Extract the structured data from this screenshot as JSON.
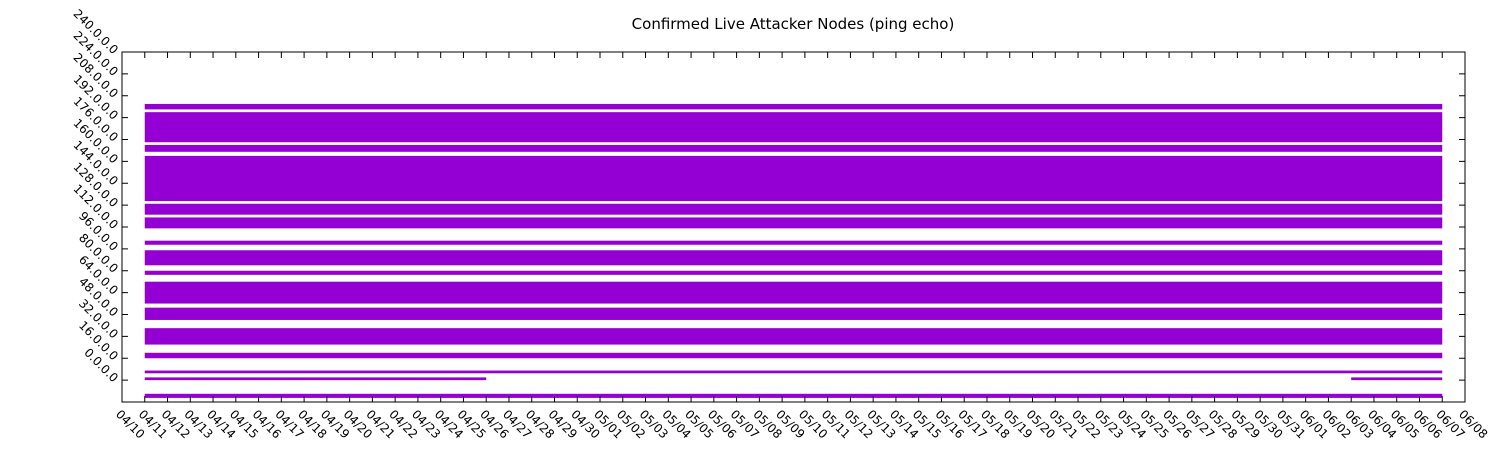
{
  "chart_data": {
    "type": "bands",
    "title": "Confirmed Live Attacker Nodes (ping echo)",
    "color": "#9400d3",
    "xlim": [
      "04/10",
      "06/08"
    ],
    "xticks": [
      "04/10",
      "04/11",
      "04/12",
      "04/13",
      "04/14",
      "04/15",
      "04/16",
      "04/17",
      "04/18",
      "04/19",
      "04/20",
      "04/21",
      "04/22",
      "04/23",
      "04/24",
      "04/25",
      "04/26",
      "04/27",
      "04/28",
      "04/29",
      "04/30",
      "05/01",
      "05/02",
      "05/03",
      "05/04",
      "05/05",
      "05/06",
      "05/07",
      "05/08",
      "05/09",
      "05/10",
      "05/11",
      "05/12",
      "05/13",
      "05/14",
      "05/15",
      "05/16",
      "05/17",
      "05/18",
      "05/19",
      "05/20",
      "05/21",
      "05/22",
      "05/23",
      "05/24",
      "05/25",
      "05/26",
      "05/27",
      "05/28",
      "05/29",
      "05/30",
      "05/31",
      "06/01",
      "06/02",
      "06/03",
      "06/04",
      "06/05",
      "06/06",
      "06/07",
      "06/08"
    ],
    "ylim": [
      -16,
      240
    ],
    "yticks": [
      {
        "value": 0,
        "label": "0.0.0.0"
      },
      {
        "value": 16,
        "label": "16.0.0.0"
      },
      {
        "value": 32,
        "label": "32.0.0.0"
      },
      {
        "value": 48,
        "label": "48.0.0.0"
      },
      {
        "value": 64,
        "label": "64.0.0.0"
      },
      {
        "value": 80,
        "label": "80.0.0.0"
      },
      {
        "value": 96,
        "label": "96.0.0.0"
      },
      {
        "value": 112,
        "label": "112.0.0.0"
      },
      {
        "value": 128,
        "label": "128.0.0.0"
      },
      {
        "value": 144,
        "label": "144.0.0.0"
      },
      {
        "value": 160,
        "label": "160.0.0.0"
      },
      {
        "value": 176,
        "label": "176.0.0.0"
      },
      {
        "value": 192,
        "label": "192.0.0.0"
      },
      {
        "value": 208,
        "label": "208.0.0.0"
      },
      {
        "value": 224,
        "label": "224.0.0.0"
      },
      {
        "value": 240,
        "label": "240.0.0.0"
      }
    ],
    "bands": [
      {
        "x": [
          "04/11",
          "06/07"
        ],
        "y": [
          198,
          202
        ]
      },
      {
        "x": [
          "04/11",
          "06/07"
        ],
        "y": [
          174,
          196
        ]
      },
      {
        "x": [
          "04/11",
          "06/07"
        ],
        "y": [
          167,
          172
        ]
      },
      {
        "x": [
          "04/11",
          "06/07"
        ],
        "y": [
          131,
          164
        ]
      },
      {
        "x": [
          "04/11",
          "06/07"
        ],
        "y": [
          121,
          129
        ]
      },
      {
        "x": [
          "04/11",
          "06/07"
        ],
        "y": [
          111,
          119
        ]
      },
      {
        "x": [
          "04/11",
          "06/07"
        ],
        "y": [
          99,
          102
        ]
      },
      {
        "x": [
          "04/11",
          "06/07"
        ],
        "y": [
          84,
          95
        ]
      },
      {
        "x": [
          "04/11",
          "06/07"
        ],
        "y": [
          77,
          80
        ]
      },
      {
        "x": [
          "04/11",
          "06/07"
        ],
        "y": [
          56,
          72
        ]
      },
      {
        "x": [
          "04/11",
          "06/07"
        ],
        "y": [
          44,
          53
        ]
      },
      {
        "x": [
          "04/11",
          "06/07"
        ],
        "y": [
          26,
          38
        ]
      },
      {
        "x": [
          "04/11",
          "06/07"
        ],
        "y": [
          16,
          20
        ]
      },
      {
        "x": [
          "04/11",
          "06/07"
        ],
        "y": [
          5,
          7
        ]
      },
      {
        "x": [
          "04/11",
          "04/26"
        ],
        "y": [
          0,
          2
        ]
      },
      {
        "x": [
          "06/03",
          "06/07"
        ],
        "y": [
          0,
          2
        ]
      },
      {
        "x": [
          "04/11",
          "06/07"
        ],
        "y": [
          -13,
          -10
        ]
      }
    ]
  }
}
